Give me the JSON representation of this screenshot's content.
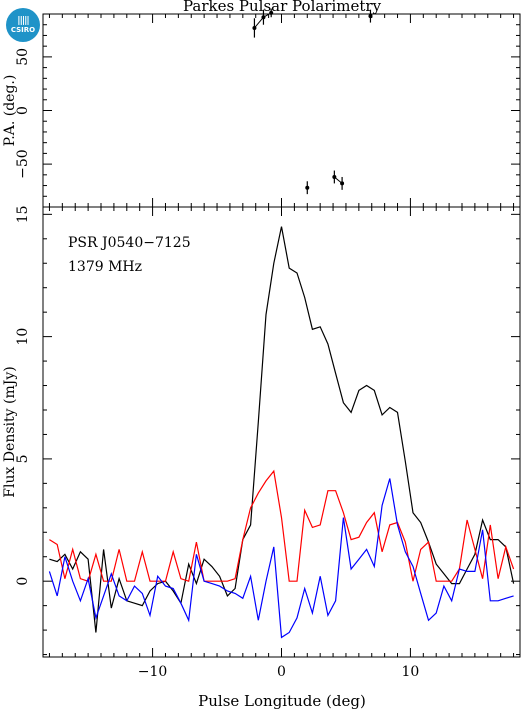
{
  "logo": {
    "text": "CSIRO",
    "color": "#1f93c8"
  },
  "chart_data": [
    {
      "type": "scatter",
      "panel": "top",
      "title": "Parkes Pulsar Polarimetry",
      "xlabel": "",
      "ylabel": "P.A. (deg.)",
      "xlim": [
        -18.5,
        18.5
      ],
      "ylim": [
        -90,
        90
      ],
      "yticks": [
        -50,
        0,
        50
      ],
      "points": [
        {
          "x": -2.1,
          "y": 77,
          "err": 9
        },
        {
          "x": -1.4,
          "y": 87,
          "err": 7
        },
        {
          "x": -0.8,
          "y": 91,
          "err": 4
        },
        {
          "x": 2.0,
          "y": -72,
          "err": 6
        },
        {
          "x": 4.1,
          "y": -62,
          "err": 6
        },
        {
          "x": 4.7,
          "y": -68,
          "err": 6
        },
        {
          "x": 6.9,
          "y": 88,
          "err": 6
        }
      ]
    },
    {
      "type": "line",
      "panel": "bottom",
      "xlabel": "Pulse Longitude (deg)",
      "ylabel": "Flux Density (mJy)",
      "xlim": [
        -18.5,
        18.5
      ],
      "ylim": [
        -3.1,
        15.3
      ],
      "xticks": [
        -10,
        0,
        10
      ],
      "yticks": [
        0,
        5,
        10,
        15
      ],
      "annotations": [
        "PSR J0540−7125",
        "1379 MHz"
      ],
      "series": [
        {
          "color": "#000000",
          "x": [
            -18.0,
            -17.4,
            -16.8,
            -16.2,
            -15.6,
            -15.0,
            -14.4,
            -13.8,
            -13.2,
            -12.6,
            -12.0,
            -11.4,
            -10.8,
            -10.2,
            -9.6,
            -9.0,
            -8.4,
            -7.8,
            -7.2,
            -6.6,
            -6.0,
            -5.4,
            -4.8,
            -4.2,
            -3.6,
            -3.0,
            -2.4,
            -1.8,
            -1.2,
            -0.6,
            0.0,
            0.6,
            1.2,
            1.8,
            2.4,
            3.0,
            3.6,
            4.2,
            4.8,
            5.4,
            6.0,
            6.6,
            7.2,
            7.8,
            8.4,
            9.0,
            9.6,
            10.2,
            10.8,
            11.4,
            12.0,
            12.6,
            13.2,
            13.8,
            14.4,
            15.0,
            15.6,
            16.2,
            16.8,
            17.4,
            18.0
          ],
          "y": [
            0.9,
            0.8,
            1.1,
            0.5,
            1.2,
            0.9,
            -2.1,
            1.3,
            -1.1,
            0.1,
            -0.8,
            -0.9,
            -1.0,
            -0.4,
            -0.1,
            0.0,
            -0.4,
            -0.9,
            0.7,
            -0.1,
            0.9,
            0.6,
            0.2,
            -0.6,
            -0.3,
            1.7,
            2.3,
            6.5,
            10.9,
            13.0,
            14.5,
            12.8,
            12.6,
            11.6,
            10.3,
            10.4,
            9.7,
            8.5,
            7.3,
            6.9,
            7.8,
            8.0,
            7.8,
            6.8,
            7.1,
            6.9,
            4.9,
            2.8,
            2.4,
            1.6,
            0.7,
            0.3,
            -0.1,
            -0.1,
            0.5,
            1.1,
            2.5,
            1.7,
            1.7,
            1.4,
            -0.1
          ]
        },
        {
          "color": "#ff0000",
          "x": [
            -18.0,
            -17.4,
            -16.8,
            -16.2,
            -15.6,
            -15.0,
            -14.4,
            -13.8,
            -13.2,
            -12.6,
            -12.0,
            -11.4,
            -10.8,
            -10.2,
            -9.6,
            -9.0,
            -8.4,
            -7.8,
            -7.2,
            -6.6,
            -6.0,
            -5.4,
            -4.8,
            -4.2,
            -3.6,
            -3.0,
            -2.4,
            -1.8,
            -1.2,
            -0.6,
            0.0,
            0.6,
            1.2,
            1.8,
            2.4,
            3.0,
            3.6,
            4.2,
            4.8,
            5.4,
            6.0,
            6.6,
            7.2,
            7.8,
            8.4,
            9.0,
            9.6,
            10.2,
            10.8,
            11.4,
            12.0,
            12.6,
            13.2,
            13.8,
            14.4,
            15.0,
            15.6,
            16.2,
            16.8,
            17.4,
            18.0
          ],
          "y": [
            1.7,
            1.5,
            0.1,
            1.3,
            0.1,
            0.0,
            1.1,
            0.0,
            0.0,
            1.3,
            0.0,
            0.0,
            1.2,
            0.0,
            0.0,
            0.0,
            1.2,
            0.1,
            0.0,
            1.6,
            0.0,
            0.0,
            0.0,
            0.0,
            0.1,
            1.7,
            3.0,
            3.6,
            4.1,
            4.5,
            2.6,
            0.0,
            0.0,
            2.9,
            2.2,
            2.3,
            3.7,
            3.7,
            2.8,
            1.7,
            1.8,
            2.4,
            2.8,
            1.2,
            2.3,
            2.4,
            1.6,
            0.0,
            1.3,
            1.6,
            0.0,
            0.0,
            0.0,
            0.5,
            2.5,
            1.3,
            0.1,
            2.3,
            0.1,
            1.4,
            0.5
          ]
        },
        {
          "color": "#0000ff",
          "x": [
            -18.0,
            -17.4,
            -16.8,
            -16.2,
            -15.6,
            -15.0,
            -14.4,
            -13.8,
            -13.2,
            -12.6,
            -12.0,
            -11.4,
            -10.8,
            -10.2,
            -9.6,
            -9.0,
            -8.4,
            -7.8,
            -7.2,
            -6.6,
            -6.0,
            -5.4,
            -4.8,
            -4.2,
            -3.6,
            -3.0,
            -2.4,
            -1.8,
            -1.2,
            -0.6,
            0.0,
            0.6,
            1.2,
            1.8,
            2.4,
            3.0,
            3.6,
            4.2,
            4.8,
            5.4,
            6.0,
            6.6,
            7.2,
            7.8,
            8.4,
            9.0,
            9.6,
            10.2,
            10.8,
            11.4,
            12.0,
            12.6,
            13.2,
            13.8,
            14.4,
            15.0,
            15.6,
            16.2,
            16.8,
            17.4,
            18.0
          ],
          "y": [
            0.4,
            -0.6,
            1.0,
            0.0,
            -0.8,
            0.1,
            -1.5,
            -0.6,
            0.3,
            -0.6,
            -0.8,
            -0.2,
            -0.5,
            -1.4,
            0.2,
            -0.2,
            -0.3,
            -0.9,
            -1.6,
            1.1,
            0.0,
            -0.1,
            -0.2,
            -0.4,
            -0.5,
            -0.7,
            0.2,
            -1.6,
            0.0,
            1.4,
            -2.3,
            -2.1,
            -1.5,
            -0.3,
            -1.3,
            0.2,
            -1.4,
            -0.8,
            2.6,
            0.5,
            0.9,
            1.3,
            0.6,
            3.1,
            4.2,
            2.3,
            1.2,
            0.6,
            -0.5,
            -1.6,
            -1.3,
            -0.2,
            -0.8,
            0.5,
            0.4,
            0.4,
            2.1,
            -0.8,
            -0.8,
            -0.7,
            -0.6
          ]
        }
      ]
    }
  ]
}
